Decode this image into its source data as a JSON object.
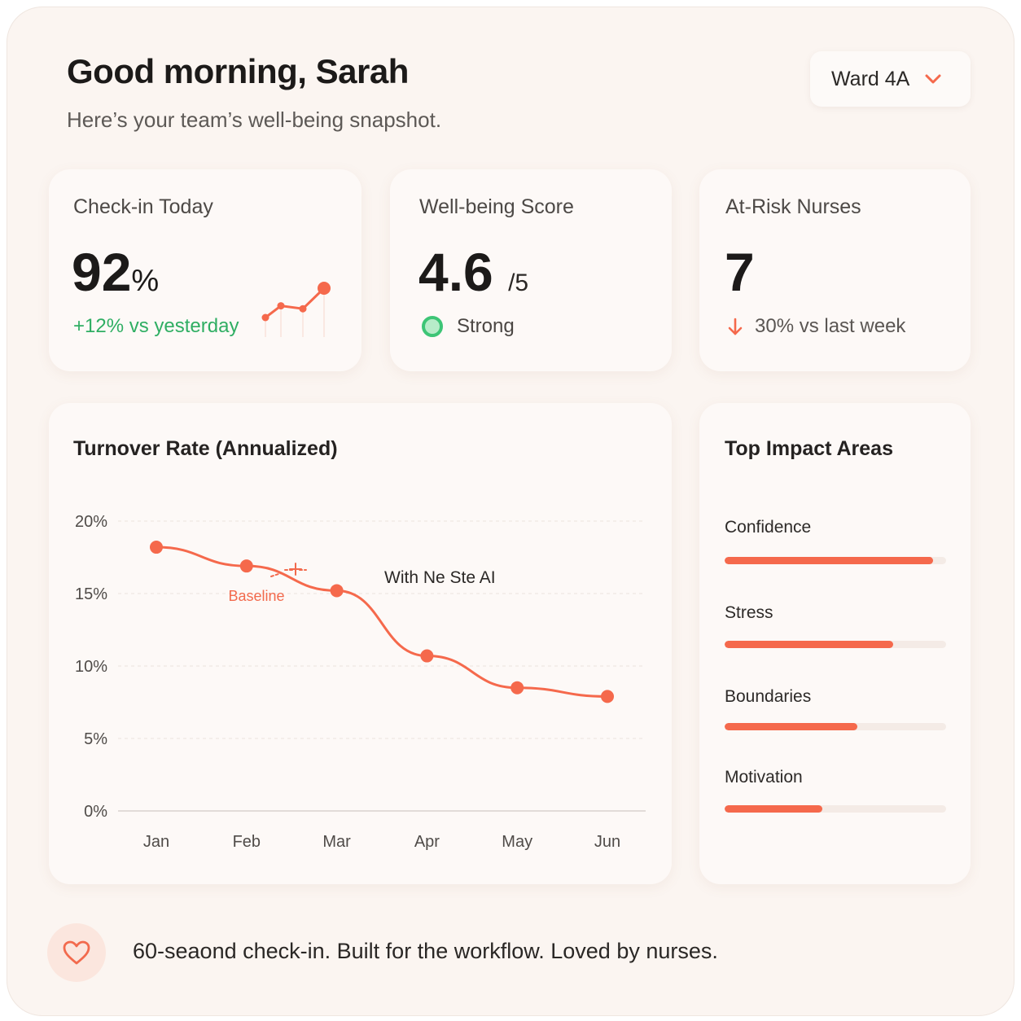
{
  "header": {
    "greeting": "Good morning, Sarah",
    "subtitle": "Here’s your team’s well-being snapshot.",
    "ward_selector": {
      "label": "Ward 4A",
      "icon": "chevron-down-icon"
    }
  },
  "colors": {
    "accent": "#f5694c",
    "positive": "#2fae63",
    "background": "#fbf5f1"
  },
  "kpis": {
    "checkin": {
      "title": "Check-in Today",
      "value": "92",
      "unit": "%",
      "delta": "+12% vs yesterday",
      "sparkline": [
        2,
        4,
        3.5,
        7
      ]
    },
    "wellbeing": {
      "title": "Well-being Score",
      "value": "4.6",
      "unit": "/5",
      "status": "Strong"
    },
    "at_risk": {
      "title": "At-Risk Nurses",
      "value": "7",
      "delta": "30% vs last week",
      "delta_icon": "arrow-down-icon"
    }
  },
  "turnover": {
    "title": "Turnover Rate (Annualized)",
    "baseline_label": "Baseline",
    "annotation": "With Ne Ste AI"
  },
  "chart_data": {
    "type": "line",
    "title": "Turnover Rate (Annualized)",
    "categories": [
      "Jan",
      "Feb",
      "Mar",
      "Apr",
      "May",
      "Jun"
    ],
    "values": [
      18.2,
      16.9,
      15.2,
      10.7,
      8.5,
      7.9
    ],
    "ylim": [
      0,
      20
    ],
    "y_ticks": [
      0,
      5,
      10,
      15,
      20
    ],
    "y_tick_labels": [
      "0%",
      "5%",
      "10%",
      "15%",
      "20%"
    ],
    "grid": true,
    "annotations": [
      "Baseline",
      "With Ne Ste AI"
    ]
  },
  "impact": {
    "title": "Top Impact Areas",
    "items": [
      {
        "label": "Confidence",
        "level": 0.94
      },
      {
        "label": "Stress",
        "level": 0.76
      },
      {
        "label": "Boundaries",
        "level": 0.6
      },
      {
        "label": "Motivation",
        "level": 0.44
      }
    ]
  },
  "footer": {
    "text": "60-seaond check-in. Built for the workflow. Loved by nurses.",
    "icon": "heart-icon"
  }
}
